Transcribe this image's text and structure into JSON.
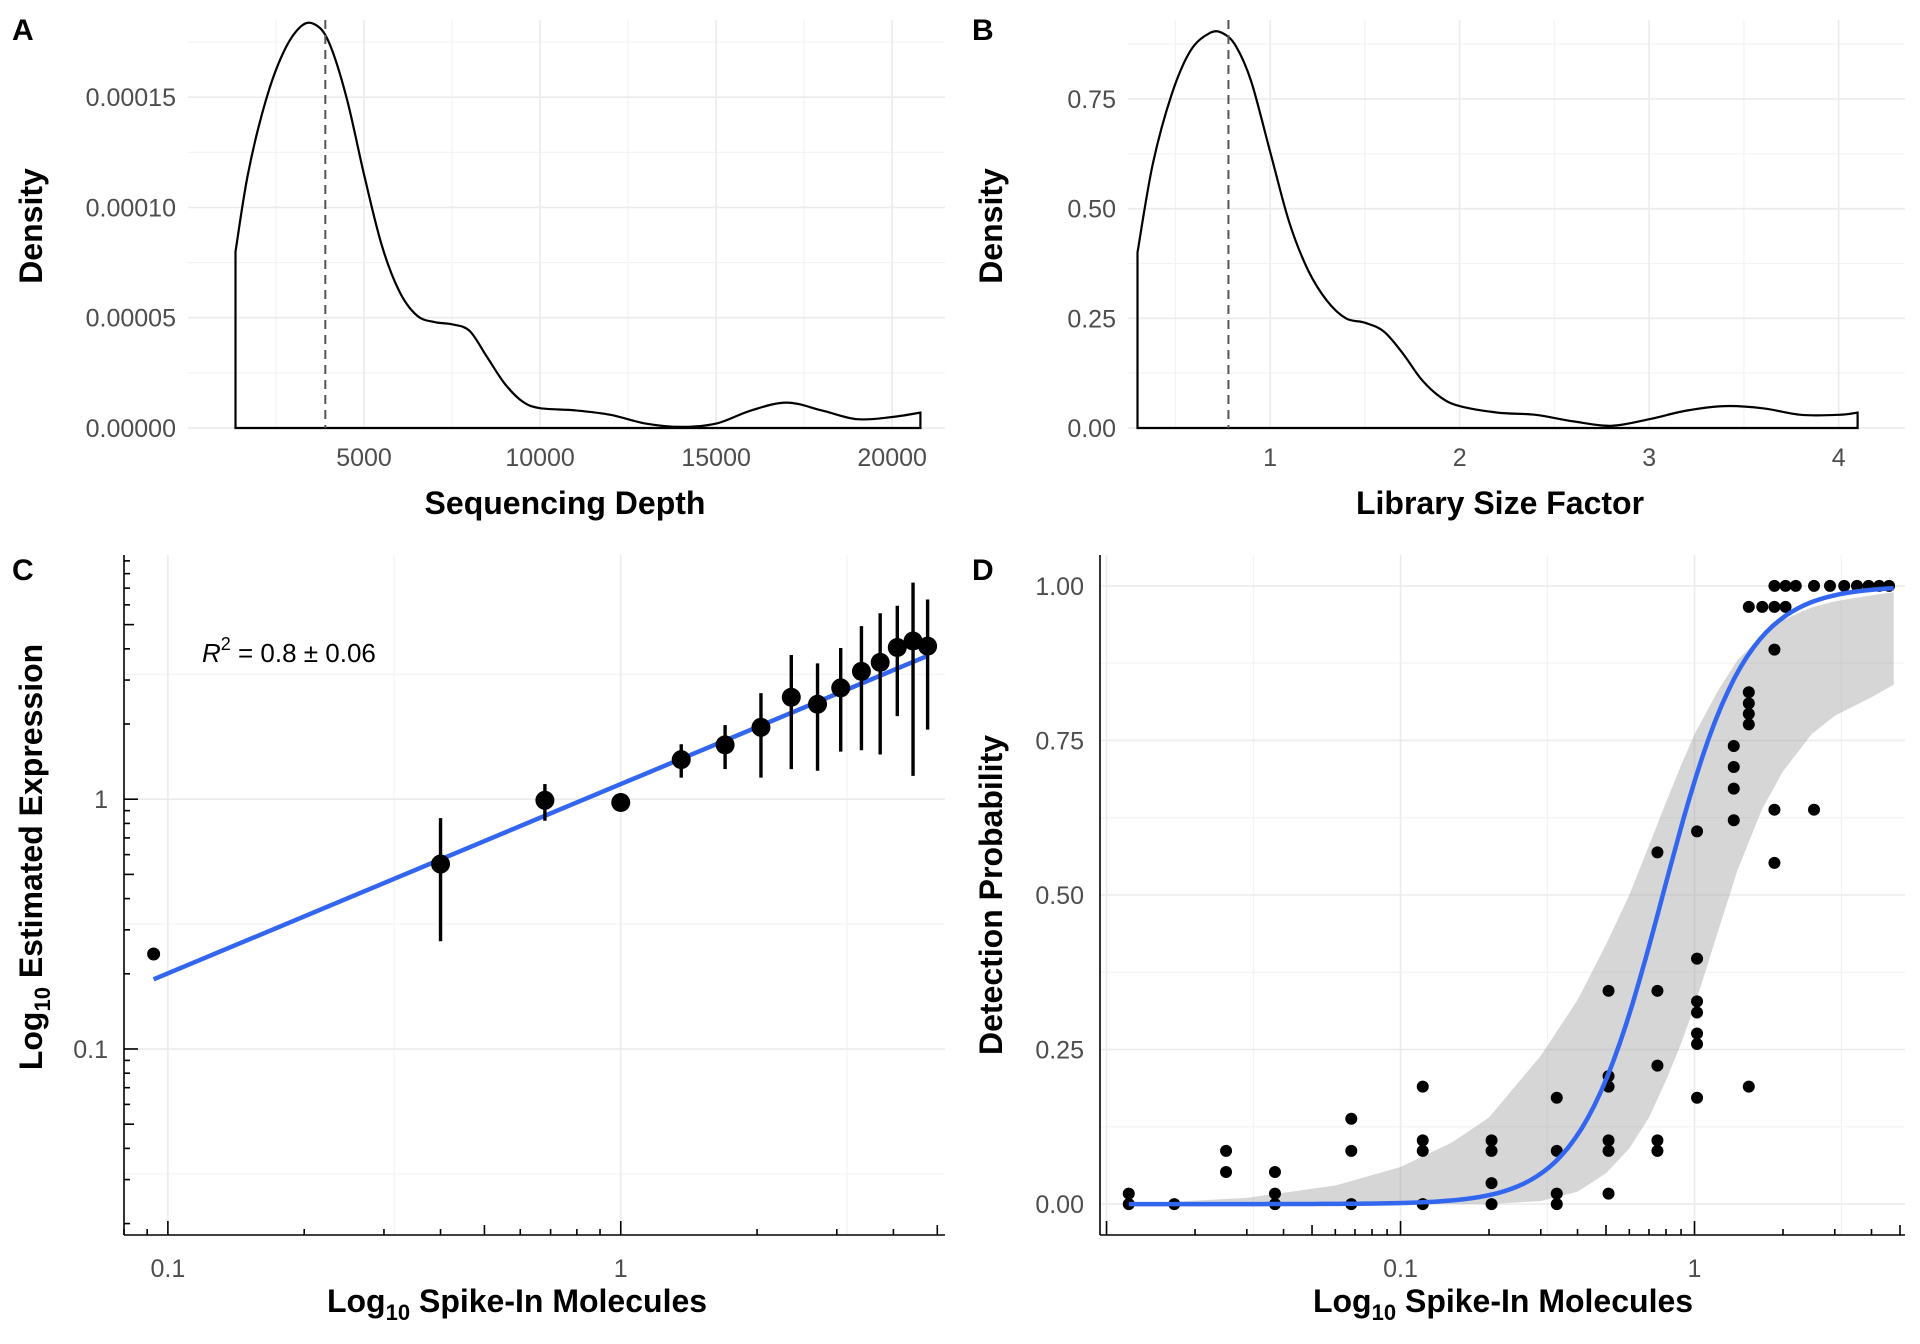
{
  "chart_data": [
    {
      "panel": "A",
      "type": "line",
      "xlabel": "Sequencing Depth",
      "ylabel": "Density",
      "xlim": [
        0,
        21500
      ],
      "ylim": [
        0,
        0.000185
      ],
      "xticks": [
        5000,
        10000,
        15000,
        20000
      ],
      "xtick_labels": [
        "5000",
        "10000",
        "15000",
        "20000"
      ],
      "yticks": [
        0,
        5e-05,
        0.0001,
        0.00015
      ],
      "ytick_labels": [
        "0.00000",
        "0.00005",
        "0.00010",
        "0.00015"
      ],
      "grid": true,
      "reference_line": {
        "x": 3900,
        "style": "dashed"
      },
      "x": [
        1350,
        1700,
        2200,
        2700,
        3200,
        3600,
        4000,
        4500,
        5000,
        5500,
        6000,
        6500,
        7000,
        7500,
        8000,
        8500,
        9000,
        9500,
        10000,
        11000,
        12000,
        13000,
        14000,
        15000,
        16000,
        17000,
        18000,
        19000,
        20000,
        20800
      ],
      "y": [
        8e-05,
        0.000115,
        0.000148,
        0.00017,
        0.000182,
        0.000183,
        0.000175,
        0.00015,
        0.000115,
        8.3e-05,
        6.2e-05,
        5.1e-05,
        4.8e-05,
        4.7e-05,
        4.4e-05,
        3.2e-05,
        2e-05,
        1.2e-05,
        9e-06,
        8e-06,
        6e-06,
        2e-06,
        5e-07,
        2e-06,
        8e-06,
        1.15e-05,
        8e-06,
        4e-06,
        5e-06,
        7e-06
      ]
    },
    {
      "panel": "B",
      "type": "line",
      "xlabel": "Library Size Factor",
      "ylabel": "Density",
      "xlim": [
        0.25,
        4.35
      ],
      "ylim": [
        0,
        0.93
      ],
      "xticks": [
        1,
        2,
        3,
        4
      ],
      "xtick_labels": [
        "1",
        "2",
        "3",
        "4"
      ],
      "yticks": [
        0,
        0.25,
        0.5,
        0.75
      ],
      "ytick_labels": [
        "0.00",
        "0.25",
        "0.50",
        "0.75"
      ],
      "grid": true,
      "reference_line": {
        "x": 0.78,
        "style": "dashed"
      },
      "x": [
        0.3,
        0.38,
        0.48,
        0.58,
        0.68,
        0.75,
        0.82,
        0.9,
        1.0,
        1.1,
        1.2,
        1.3,
        1.4,
        1.5,
        1.6,
        1.7,
        1.8,
        1.9,
        2.0,
        2.2,
        2.4,
        2.6,
        2.8,
        3.0,
        3.2,
        3.4,
        3.6,
        3.8,
        4.0,
        4.1
      ],
      "y": [
        0.4,
        0.6,
        0.76,
        0.86,
        0.9,
        0.9,
        0.87,
        0.79,
        0.63,
        0.47,
        0.36,
        0.29,
        0.25,
        0.24,
        0.22,
        0.17,
        0.11,
        0.07,
        0.05,
        0.035,
        0.03,
        0.015,
        0.005,
        0.02,
        0.04,
        0.05,
        0.045,
        0.03,
        0.03,
        0.035
      ]
    },
    {
      "panel": "C",
      "type": "scatter",
      "xlabel": "Log10 Spike-In Molecules",
      "ylabel": "Log10 Estimated Expression",
      "xscale": "log",
      "yscale": "log",
      "xlim": [
        0.08,
        5.2
      ],
      "ylim": [
        0.018,
        9.5
      ],
      "xticks": [
        0.1,
        1
      ],
      "xtick_labels": [
        "0.1",
        "1"
      ],
      "yticks": [
        0.1,
        1
      ],
      "ytick_labels": [
        "0.1",
        "1"
      ],
      "grid": true,
      "annotation": {
        "r2_label": "R",
        "r2_exp": "2",
        "r2_text": " = 0.8 ± 0.06"
      },
      "points": [
        {
          "x": 0.093,
          "y": 0.24,
          "lo": null,
          "hi": null
        },
        {
          "x": 0.4,
          "y": 0.55,
          "lo": 0.27,
          "hi": 0.84
        },
        {
          "x": 0.68,
          "y": 0.99,
          "lo": 0.82,
          "hi": 1.15
        },
        {
          "x": 1.0,
          "y": 0.97,
          "lo": null,
          "hi": null
        },
        {
          "x": 1.36,
          "y": 1.44,
          "lo": 1.22,
          "hi": 1.66
        },
        {
          "x": 1.7,
          "y": 1.65,
          "lo": 1.32,
          "hi": 1.98
        },
        {
          "x": 2.04,
          "y": 1.94,
          "lo": 1.22,
          "hi": 2.66
        },
        {
          "x": 2.38,
          "y": 2.56,
          "lo": 1.32,
          "hi": 3.78
        },
        {
          "x": 2.72,
          "y": 2.4,
          "lo": 1.3,
          "hi": 3.5
        },
        {
          "x": 3.06,
          "y": 2.79,
          "lo": 1.55,
          "hi": 4.03
        },
        {
          "x": 3.4,
          "y": 3.25,
          "lo": 1.57,
          "hi": 4.93
        },
        {
          "x": 3.74,
          "y": 3.53,
          "lo": 1.51,
          "hi": 5.55
        },
        {
          "x": 4.08,
          "y": 4.05,
          "lo": 2.15,
          "hi": 5.95
        },
        {
          "x": 4.42,
          "y": 4.3,
          "lo": 1.24,
          "hi": 7.36
        },
        {
          "x": 4.76,
          "y": 4.1,
          "lo": 1.9,
          "hi": 6.3
        }
      ],
      "fit_line": {
        "x": [
          0.093,
          4.76
        ],
        "y": [
          0.19,
          3.75
        ],
        "color": "#3366ee"
      }
    },
    {
      "panel": "D",
      "type": "scatter",
      "xlabel": "Log10 Spike-In Molecules",
      "ylabel": "Detection Probability",
      "xscale": "log",
      "xlim": [
        0.0095,
        5.2
      ],
      "ylim": [
        -0.05,
        1.05
      ],
      "xticks": [
        0.1,
        1
      ],
      "xtick_labels": [
        "0.1",
        "1"
      ],
      "yticks": [
        0,
        0.25,
        0.5,
        0.75,
        1
      ],
      "ytick_labels": [
        "0.00",
        "0.25",
        "0.50",
        "0.75",
        "1.00"
      ],
      "grid": true,
      "points": [
        {
          "x": 0.0119,
          "y": 0
        },
        {
          "x": 0.0119,
          "y": 0.017
        },
        {
          "x": 0.017,
          "y": 0
        },
        {
          "x": 0.0255,
          "y": 0.052
        },
        {
          "x": 0.0255,
          "y": 0.086
        },
        {
          "x": 0.0374,
          "y": 0
        },
        {
          "x": 0.0374,
          "y": 0.017
        },
        {
          "x": 0.0374,
          "y": 0.052
        },
        {
          "x": 0.068,
          "y": 0
        },
        {
          "x": 0.068,
          "y": 0.086
        },
        {
          "x": 0.068,
          "y": 0.138
        },
        {
          "x": 0.119,
          "y": 0
        },
        {
          "x": 0.119,
          "y": 0.086
        },
        {
          "x": 0.119,
          "y": 0.103
        },
        {
          "x": 0.119,
          "y": 0.19
        },
        {
          "x": 0.204,
          "y": 0
        },
        {
          "x": 0.204,
          "y": 0.034
        },
        {
          "x": 0.204,
          "y": 0.086
        },
        {
          "x": 0.204,
          "y": 0.103
        },
        {
          "x": 0.34,
          "y": 0
        },
        {
          "x": 0.34,
          "y": 0.017
        },
        {
          "x": 0.34,
          "y": 0.086
        },
        {
          "x": 0.34,
          "y": 0.172
        },
        {
          "x": 0.51,
          "y": 0.017
        },
        {
          "x": 0.51,
          "y": 0.086
        },
        {
          "x": 0.51,
          "y": 0.103
        },
        {
          "x": 0.51,
          "y": 0.19
        },
        {
          "x": 0.51,
          "y": 0.207
        },
        {
          "x": 0.51,
          "y": 0.345
        },
        {
          "x": 0.748,
          "y": 0.086
        },
        {
          "x": 0.748,
          "y": 0.103
        },
        {
          "x": 0.748,
          "y": 0.224
        },
        {
          "x": 0.748,
          "y": 0.345
        },
        {
          "x": 0.748,
          "y": 0.569
        },
        {
          "x": 1.02,
          "y": 0.172
        },
        {
          "x": 1.02,
          "y": 0.259
        },
        {
          "x": 1.02,
          "y": 0.276
        },
        {
          "x": 1.02,
          "y": 0.31
        },
        {
          "x": 1.02,
          "y": 0.328
        },
        {
          "x": 1.02,
          "y": 0.397
        },
        {
          "x": 1.02,
          "y": 0.603
        },
        {
          "x": 1.36,
          "y": 0.621
        },
        {
          "x": 1.36,
          "y": 0.672
        },
        {
          "x": 1.36,
          "y": 0.707
        },
        {
          "x": 1.36,
          "y": 0.741
        },
        {
          "x": 1.53,
          "y": 0.19
        },
        {
          "x": 1.53,
          "y": 0.776
        },
        {
          "x": 1.53,
          "y": 0.793
        },
        {
          "x": 1.53,
          "y": 0.81
        },
        {
          "x": 1.53,
          "y": 0.828
        },
        {
          "x": 1.53,
          "y": 0.966
        },
        {
          "x": 1.87,
          "y": 0.552
        },
        {
          "x": 1.87,
          "y": 0.638
        },
        {
          "x": 1.87,
          "y": 0.897
        },
        {
          "x": 1.87,
          "y": 0.966
        },
        {
          "x": 1.87,
          "y": 1.0
        },
        {
          "x": 1.7,
          "y": 0.966
        },
        {
          "x": 2.04,
          "y": 0.966
        },
        {
          "x": 2.04,
          "y": 1.0
        },
        {
          "x": 2.55,
          "y": 0.638
        },
        {
          "x": 2.21,
          "y": 1.0
        },
        {
          "x": 2.55,
          "y": 1.0
        },
        {
          "x": 2.89,
          "y": 1.0
        },
        {
          "x": 3.23,
          "y": 1.0
        },
        {
          "x": 3.57,
          "y": 1.0
        },
        {
          "x": 3.91,
          "y": 1.0
        },
        {
          "x": 4.25,
          "y": 1.0
        },
        {
          "x": 4.59,
          "y": 1.0
        }
      ],
      "fit": {
        "model": "logistic",
        "slope_per_log10": 3.1,
        "midpoint": 0.78,
        "x_range": [
          0.0119,
          4.76
        ],
        "color": "#3366ee"
      },
      "ribbon": {
        "x": [
          0.0119,
          0.03,
          0.06,
          0.1,
          0.15,
          0.2,
          0.3,
          0.4,
          0.5,
          0.6,
          0.7,
          0.8,
          0.9,
          1.0,
          1.2,
          1.4,
          1.7,
          2.0,
          2.5,
          3.0,
          4.0,
          4.76
        ],
        "lower": [
          0,
          0,
          0,
          0,
          0,
          0,
          0.005,
          0.02,
          0.05,
          0.09,
          0.14,
          0.2,
          0.26,
          0.32,
          0.44,
          0.54,
          0.64,
          0.7,
          0.76,
          0.79,
          0.82,
          0.84
        ],
        "upper": [
          0,
          0.01,
          0.03,
          0.06,
          0.1,
          0.14,
          0.24,
          0.33,
          0.42,
          0.5,
          0.58,
          0.65,
          0.71,
          0.76,
          0.83,
          0.88,
          0.92,
          0.945,
          0.965,
          0.975,
          0.985,
          0.99
        ]
      }
    }
  ]
}
